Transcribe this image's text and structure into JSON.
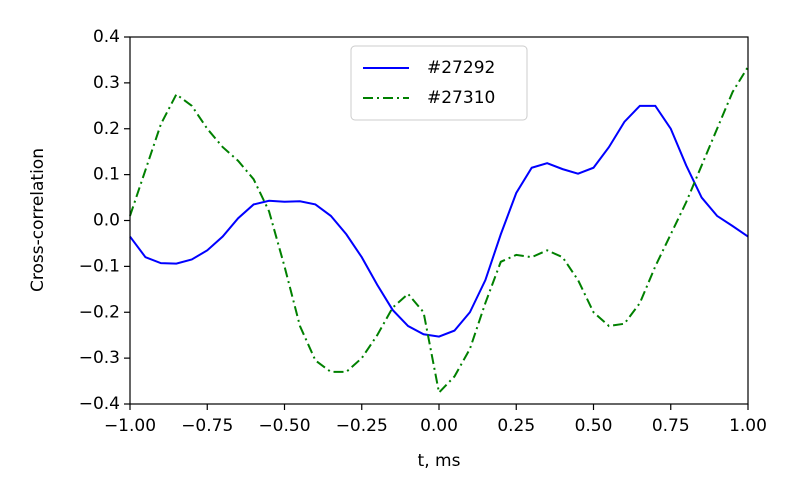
{
  "chart_data": {
    "type": "line",
    "xlabel": "t, ms",
    "ylabel": "Cross-correlation",
    "x": [
      -1.0,
      -0.95,
      -0.9,
      -0.85,
      -0.8,
      -0.75,
      -0.7,
      -0.65,
      -0.6,
      -0.55,
      -0.5,
      -0.45,
      -0.4,
      -0.35,
      -0.3,
      -0.25,
      -0.2,
      -0.15,
      -0.1,
      -0.05,
      0.0,
      0.05,
      0.1,
      0.15,
      0.2,
      0.25,
      0.3,
      0.35,
      0.4,
      0.45,
      0.5,
      0.55,
      0.6,
      0.65,
      0.7,
      0.75,
      0.8,
      0.85,
      0.9,
      0.95,
      1.0
    ],
    "series": [
      {
        "name": "#27292",
        "color": "#0000ff",
        "linestyle": "solid",
        "values": [
          -0.035,
          -0.08,
          -0.093,
          -0.094,
          -0.085,
          -0.065,
          -0.035,
          0.005,
          0.035,
          0.043,
          0.041,
          0.042,
          0.035,
          0.01,
          -0.03,
          -0.08,
          -0.14,
          -0.195,
          -0.23,
          -0.248,
          -0.253,
          -0.24,
          -0.2,
          -0.13,
          -0.03,
          0.06,
          0.115,
          0.125,
          0.112,
          0.102,
          0.115,
          0.16,
          0.215,
          0.25,
          0.25,
          0.2,
          0.12,
          0.05,
          0.01,
          -0.012,
          -0.035
        ]
      },
      {
        "name": "#27310",
        "color": "#008000",
        "linestyle": "dashdot",
        "values": [
          0.01,
          0.11,
          0.21,
          0.275,
          0.25,
          0.2,
          0.16,
          0.13,
          0.09,
          0.02,
          -0.1,
          -0.23,
          -0.305,
          -0.33,
          -0.33,
          -0.3,
          -0.25,
          -0.19,
          -0.16,
          -0.2,
          -0.375,
          -0.34,
          -0.28,
          -0.18,
          -0.09,
          -0.075,
          -0.08,
          -0.065,
          -0.08,
          -0.13,
          -0.2,
          -0.23,
          -0.225,
          -0.18,
          -0.1,
          -0.03,
          0.04,
          0.12,
          0.2,
          0.28,
          0.335
        ]
      }
    ],
    "xlim": [
      -1.0,
      1.0
    ],
    "xticks": [
      {
        "value": -1.0,
        "label": "−1.00"
      },
      {
        "value": -0.75,
        "label": "−0.75"
      },
      {
        "value": -0.5,
        "label": "−0.50"
      },
      {
        "value": -0.25,
        "label": "−0.25"
      },
      {
        "value": 0.0,
        "label": "0.00"
      },
      {
        "value": 0.25,
        "label": "0.25"
      },
      {
        "value": 0.5,
        "label": "0.50"
      },
      {
        "value": 0.75,
        "label": "0.75"
      },
      {
        "value": 1.0,
        "label": "1.00"
      }
    ],
    "ylim": [
      -0.4,
      0.4
    ],
    "yticks": [
      {
        "value": -0.4,
        "label": "−0.4"
      },
      {
        "value": -0.3,
        "label": "−0.3"
      },
      {
        "value": -0.2,
        "label": "−0.2"
      },
      {
        "value": -0.1,
        "label": "−0.1"
      },
      {
        "value": 0.0,
        "label": "0.0"
      },
      {
        "value": 0.1,
        "label": "0.1"
      },
      {
        "value": 0.2,
        "label": "0.2"
      },
      {
        "value": 0.3,
        "label": "0.3"
      },
      {
        "value": 0.4,
        "label": "0.4"
      }
    ],
    "legend": "upper center"
  }
}
